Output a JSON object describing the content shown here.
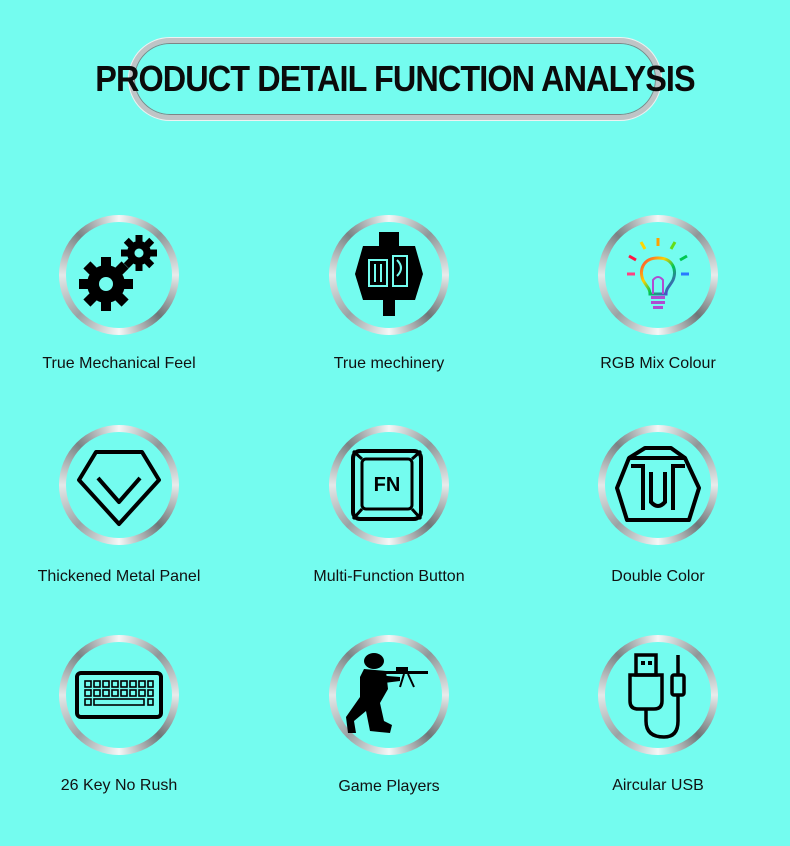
{
  "header": {
    "title": "PRODUCT DETAIL FUNCTION ANALYSIS"
  },
  "features": [
    {
      "label": "True Mechanical Feel",
      "icon": "gears-icon"
    },
    {
      "label": "True mechinery",
      "icon": "mechanical-switch-icon"
    },
    {
      "label": "RGB Mix Colour",
      "icon": "rgb-lightbulb-icon"
    },
    {
      "label": "Thickened Metal Panel",
      "icon": "diamond-icon"
    },
    {
      "label": "Multi-Function Button",
      "icon": "fn-key-icon",
      "key_text": "FN"
    },
    {
      "label": "Double Color",
      "icon": "double-color-keycap-icon"
    },
    {
      "label": "26 Key No Rush",
      "icon": "keyboard-icon"
    },
    {
      "label": "Game Players",
      "icon": "soldier-gamer-icon"
    },
    {
      "label": "Aircular USB",
      "icon": "usb-cable-icon"
    }
  ]
}
